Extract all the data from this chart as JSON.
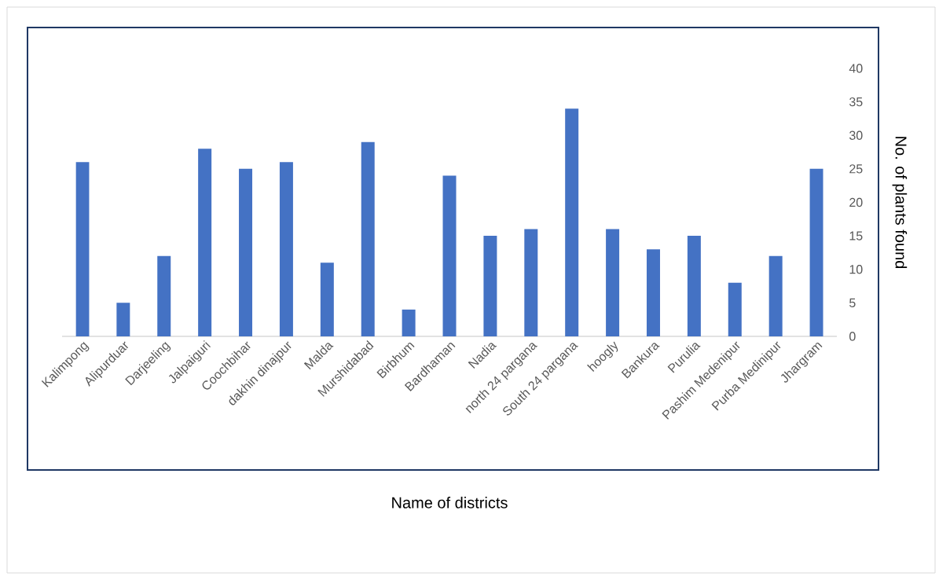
{
  "chart_data": {
    "type": "bar",
    "xlabel": "Name of districts",
    "ylabel": "No. of plants found",
    "categories": [
      "Kalimpong",
      "Alipurduar",
      "Darjeeling",
      "Jalpaiguri",
      "Coochbihar",
      "dakhin dinajpur",
      "Malda",
      "Murshidabad",
      "Birbhum",
      "Bardhaman",
      "Nadia",
      "north 24 pargana",
      "South 24 pargana",
      "hoogly",
      "Bankura",
      "Purulia",
      "Pashim Medenipur",
      "Purba Medinipur",
      "Jhargram"
    ],
    "values": [
      26,
      5,
      12,
      28,
      25,
      26,
      11,
      29,
      4,
      24,
      15,
      16,
      34,
      16,
      13,
      15,
      8,
      12,
      25
    ],
    "color": "#4472c4",
    "ylim": [
      0,
      40
    ],
    "yticks": [
      0,
      5,
      10,
      15,
      20,
      25,
      30,
      35,
      40
    ],
    "grid": false
  }
}
